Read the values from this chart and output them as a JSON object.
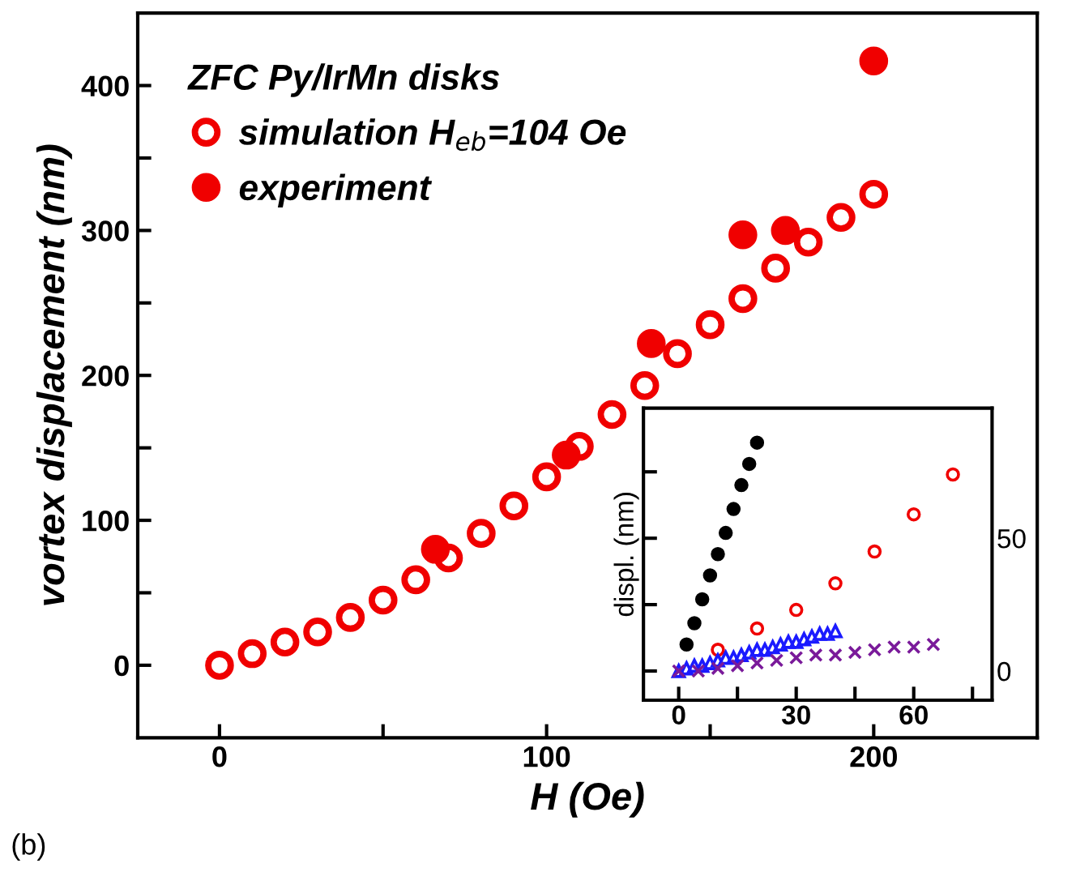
{
  "chart_data": [
    {
      "type": "scatter",
      "xlabel": "H (Oe)",
      "ylabel": "vortex displacement (nm)",
      "legend_title": "ZFC Py/IrMn disks",
      "legend": "top left",
      "grid": false,
      "xlim": [
        -25,
        250
      ],
      "ylim": [
        -50,
        450
      ],
      "xticks": [
        0,
        {
          "value": 50,
          "label": null
        },
        100,
        {
          "value": 150,
          "label": null
        },
        200
      ],
      "yticks": [
        0,
        {
          "value": 50,
          "label": null
        },
        100,
        {
          "value": 150,
          "label": null
        },
        200,
        {
          "value": 250,
          "label": null
        },
        300,
        {
          "value": 350,
          "label": null
        },
        400
      ],
      "annotations": [
        "(b)"
      ],
      "series": [
        {
          "name": "simulation H$_{eb}$=104 Oe",
          "color": "#f00000",
          "marker": "open circle",
          "x": [
            0,
            10,
            20,
            30,
            40,
            50,
            60,
            70,
            80,
            90,
            100,
            110,
            120,
            130,
            140,
            150,
            160,
            170,
            180,
            190,
            200
          ],
          "values": [
            0,
            8,
            16,
            23,
            33,
            45,
            59,
            74,
            91,
            110,
            130,
            151,
            173,
            193,
            215,
            235,
            253,
            274,
            292,
            309,
            325
          ]
        },
        {
          "name": "experiment",
          "color": "#f00000",
          "marker": "circle",
          "x": [
            66,
            106,
            132,
            160,
            173,
            200
          ],
          "values": [
            80,
            145,
            222,
            297,
            300,
            417
          ]
        }
      ]
    },
    {
      "type": "scatter",
      "ylabel": "displ. (nm)",
      "legend": false,
      "grid": false,
      "xlim": [
        -9,
        80
      ],
      "ylim": [
        -11,
        99
      ],
      "xticks": [
        0,
        {
          "value": 15,
          "label": null
        },
        30,
        {
          "value": 45,
          "label": null
        },
        60,
        {
          "value": 75,
          "label": null
        }
      ],
      "yticks": [
        0,
        {
          "value": 25,
          "label": null
        },
        50,
        {
          "value": 75,
          "label": null
        }
      ],
      "series": [
        {
          "color": "#000000",
          "marker": "circle",
          "x": [
            2,
            4,
            6,
            8,
            10,
            12,
            14,
            16,
            18,
            20
          ],
          "values": [
            10,
            18,
            27,
            36,
            44,
            52,
            61,
            70,
            78,
            86
          ]
        },
        {
          "color": "#f00000",
          "marker": "open circle",
          "x": [
            10,
            20,
            30,
            40,
            50,
            60,
            70
          ],
          "values": [
            8,
            16,
            23,
            33,
            45,
            59,
            74
          ]
        },
        {
          "color": "#1a1aff",
          "marker": "triangle",
          "x": [
            0,
            2,
            4,
            6,
            8,
            10,
            12,
            14,
            16,
            18,
            20,
            22,
            24,
            26,
            28,
            30,
            32,
            34,
            36,
            38,
            40
          ],
          "values": [
            0,
            1,
            2,
            2,
            3,
            4,
            5,
            5,
            6,
            7,
            8,
            8,
            9,
            10,
            11,
            11,
            12,
            13,
            14,
            14,
            15
          ]
        },
        {
          "color": "#7a1a9a",
          "marker": "cross",
          "x": [
            0,
            5,
            10,
            15,
            20,
            25,
            30,
            35,
            40,
            45,
            50,
            55,
            60,
            65
          ],
          "values": [
            0,
            0,
            1,
            2,
            3,
            4,
            5,
            6,
            6,
            7,
            8,
            9,
            9,
            10
          ]
        }
      ]
    }
  ]
}
